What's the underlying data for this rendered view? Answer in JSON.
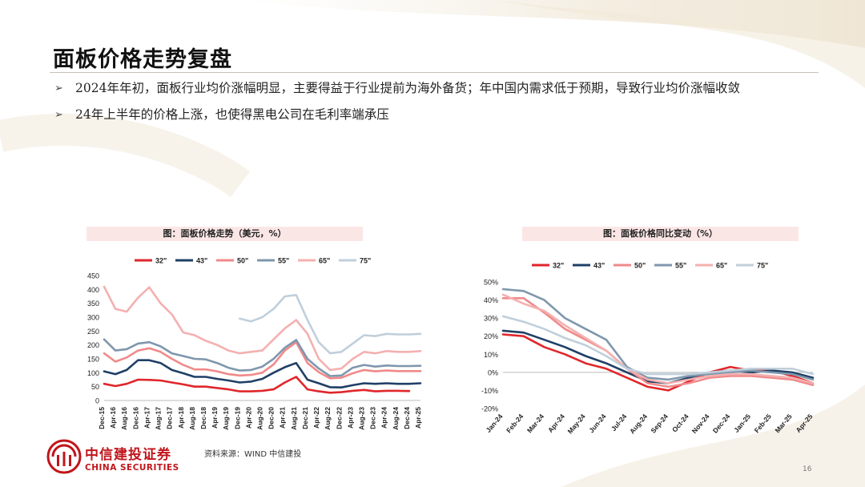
{
  "slide": {
    "title": "面板价格走势复盘",
    "bullets": [
      "2024年年初，面板行业均价涨幅明显，主要得益于行业提前为海外备货；年中国内需求低于预期，导致行业均价涨幅收敛",
      "24年上半年的价格上涨，也使得黑电公司在毛利率端承压"
    ],
    "source": "资料来源：WIND 中信建投",
    "page_number": "16",
    "logo_cn": "中信建投证券",
    "logo_en": "CHINA SECURITIES"
  },
  "colors": {
    "brand": "#c0151b",
    "caption_bg": "#fbe6e6"
  },
  "chart_data": [
    {
      "type": "line",
      "caption": "图：面板价格走势（美元，%）",
      "categories": [
        "Dec-15",
        "Apr-16",
        "Aug-16",
        "Dec-16",
        "Apr-17",
        "Aug-17",
        "Dec-17",
        "Apr-18",
        "Aug-18",
        "Dec-18",
        "Apr-19",
        "Aug-19",
        "Dec-19",
        "Apr-20",
        "Aug-20",
        "Dec-20",
        "Apr-21",
        "Aug-21",
        "Dec-21",
        "Apr-22",
        "Aug-22",
        "Dec-22",
        "Apr-23",
        "Aug-23",
        "Dec-23",
        "Apr-24",
        "Aug-24",
        "Dec-24",
        "Apr-25"
      ],
      "ylim": [
        0,
        450
      ],
      "yticks": [
        0,
        50,
        100,
        150,
        200,
        250,
        300,
        350,
        400,
        450
      ],
      "legend_position": "top",
      "series": [
        {
          "name": "32\"",
          "color": "#e0262b",
          "values": [
            60,
            52,
            60,
            75,
            74,
            72,
            65,
            58,
            50,
            50,
            45,
            40,
            33,
            33,
            35,
            40,
            65,
            85,
            40,
            33,
            28,
            30,
            35,
            38,
            33,
            35,
            35,
            34,
            null
          ]
        },
        {
          "name": "43\"",
          "color": "#1f3f66",
          "values": [
            105,
            95,
            110,
            145,
            145,
            135,
            110,
            98,
            85,
            85,
            78,
            72,
            65,
            68,
            78,
            100,
            120,
            135,
            75,
            62,
            48,
            47,
            55,
            62,
            60,
            62,
            60,
            60,
            62
          ]
        },
        {
          "name": "50\"",
          "color": "#f08a8a",
          "values": [
            170,
            140,
            155,
            180,
            188,
            175,
            150,
            128,
            112,
            112,
            105,
            95,
            90,
            92,
            100,
            130,
            180,
            210,
            135,
            102,
            80,
            82,
            98,
            110,
            105,
            108,
            106,
            106,
            106
          ]
        },
        {
          "name": "55\"",
          "color": "#7f97ad",
          "values": [
            220,
            180,
            185,
            205,
            210,
            195,
            170,
            160,
            150,
            148,
            135,
            118,
            108,
            110,
            122,
            150,
            190,
            218,
            150,
            115,
            88,
            90,
            118,
            128,
            122,
            126,
            124,
            124,
            125
          ]
        },
        {
          "name": "65\"",
          "color": "#f4b0b0",
          "values": [
            410,
            330,
            320,
            370,
            408,
            350,
            310,
            245,
            235,
            215,
            200,
            180,
            170,
            175,
            180,
            220,
            260,
            290,
            240,
            150,
            110,
            115,
            150,
            175,
            170,
            178,
            175,
            175,
            178
          ]
        },
        {
          "name": "75\"",
          "color": "#c0cfdb",
          "values": [
            null,
            null,
            null,
            null,
            null,
            null,
            null,
            null,
            null,
            null,
            null,
            null,
            295,
            285,
            300,
            330,
            375,
            380,
            290,
            210,
            170,
            175,
            205,
            235,
            232,
            240,
            238,
            238,
            240
          ]
        }
      ]
    },
    {
      "type": "line",
      "caption": "图：面板价格同比变动（%）",
      "categories": [
        "Jan-24",
        "Feb-24",
        "Mar-24",
        "Apr-24",
        "May-24",
        "Jun-24",
        "Jul-24",
        "Aug-24",
        "Sep-24",
        "Oct-24",
        "Nov-24",
        "Dec-24",
        "Jan-25",
        "Feb-25",
        "Mar-25",
        "Apr-25"
      ],
      "ylim": [
        -20,
        50
      ],
      "yticks": [
        "-20%",
        "-10%",
        "0%",
        "10%",
        "20%",
        "30%",
        "40%",
        "50%"
      ],
      "legend_position": "top",
      "series": [
        {
          "name": "32\"",
          "color": "#e0262b",
          "values": [
            21,
            20,
            14,
            10,
            5,
            2,
            -3,
            -8,
            -10,
            -5,
            0,
            3,
            1,
            1,
            -2,
            -6
          ]
        },
        {
          "name": "43\"",
          "color": "#1f3f66",
          "values": [
            23,
            22,
            18,
            14,
            9,
            5,
            0,
            -5,
            -6,
            -3,
            0,
            1,
            0,
            1,
            0,
            -3
          ]
        },
        {
          "name": "50\"",
          "color": "#f08a8a",
          "values": [
            41,
            41,
            33,
            24,
            18,
            12,
            2,
            -6,
            -8,
            -6,
            -3,
            -2,
            -2,
            -3,
            -4,
            -7
          ]
        },
        {
          "name": "55\"",
          "color": "#7f97ad",
          "values": [
            46,
            45,
            40,
            30,
            24,
            18,
            3,
            -3,
            -4,
            -2,
            -1,
            0,
            1,
            0,
            -1,
            -4
          ]
        },
        {
          "name": "65\"",
          "color": "#f4b0b0",
          "values": [
            43,
            38,
            34,
            26,
            19,
            12,
            2,
            -4,
            -6,
            -4,
            -2,
            -1,
            -1,
            -2,
            -3,
            -6
          ]
        },
        {
          "name": "75\"",
          "color": "#c0cfdb",
          "values": [
            31,
            28,
            24,
            19,
            15,
            9,
            2,
            -1,
            -1,
            -1,
            0,
            1,
            2,
            2,
            2,
            -1
          ]
        }
      ]
    }
  ]
}
